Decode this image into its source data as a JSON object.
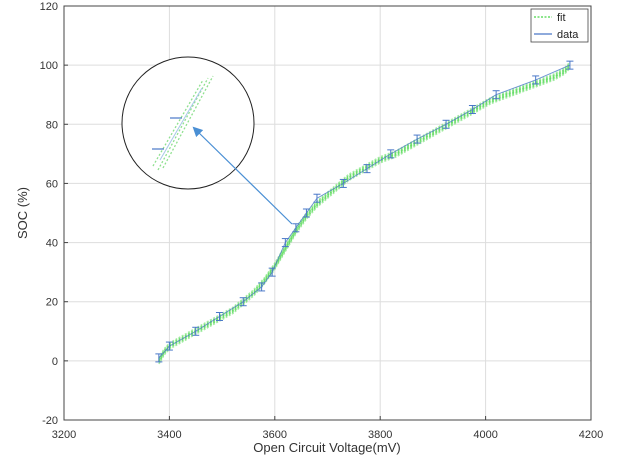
{
  "chart_data": {
    "type": "line",
    "xlabel": "Open Circuit Voltage(mV)",
    "ylabel": "SOC (%)",
    "xlim": [
      3200,
      4200
    ],
    "ylim": [
      -20,
      120
    ],
    "xticks": [
      3200,
      3400,
      3600,
      3800,
      4000,
      4200
    ],
    "yticks": [
      -20,
      0,
      20,
      40,
      60,
      80,
      100,
      120
    ],
    "grid": true,
    "legend": {
      "position": "top-right",
      "entries": [
        "fit",
        "data"
      ]
    },
    "series": [
      {
        "name": "fit",
        "color": "#66dd66",
        "style": "dotted-band",
        "x": [
          3380,
          3390,
          3400,
          3420,
          3440,
          3460,
          3480,
          3500,
          3520,
          3540,
          3560,
          3580,
          3600,
          3620,
          3640,
          3660,
          3680,
          3700,
          3720,
          3740,
          3760,
          3780,
          3800,
          3830,
          3860,
          3890,
          3920,
          3950,
          3980,
          4010,
          4040,
          4070,
          4100,
          4130,
          4150,
          4160
        ],
        "y": [
          0,
          3,
          5,
          7,
          9,
          11,
          13,
          15,
          17,
          20,
          23,
          27,
          32,
          38,
          44,
          49,
          53,
          56,
          59,
          62,
          64,
          66,
          68,
          70,
          73,
          76,
          79,
          82,
          85,
          88,
          90,
          92,
          94,
          96,
          98,
          100
        ]
      },
      {
        "name": "data",
        "color": "#4a78c8",
        "style": "errorbar",
        "x": [
          3380,
          3400,
          3450,
          3495,
          3540,
          3575,
          3595,
          3620,
          3640,
          3660,
          3680,
          3730,
          3775,
          3820,
          3870,
          3925,
          3975,
          4020,
          4095,
          4160
        ],
        "y": [
          1,
          5,
          10,
          15,
          20,
          25,
          30,
          40,
          45,
          50,
          55,
          60,
          65,
          70,
          75,
          80,
          85,
          90,
          95,
          100
        ]
      }
    ]
  }
}
